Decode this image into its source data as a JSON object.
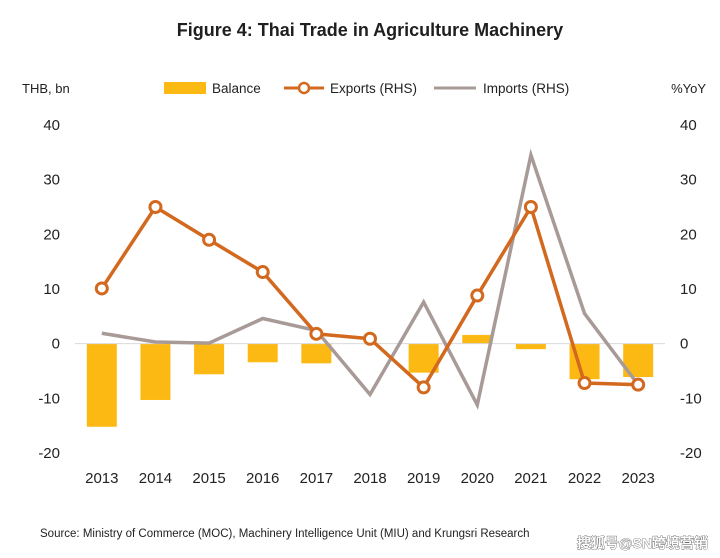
{
  "chart_data": {
    "type": "bar+line",
    "title": "Figure 4: Thai Trade in Agriculture Machinery",
    "left_axis_label": "THB, bn",
    "right_axis_label": "%YoY",
    "ylim_left": [
      -20,
      40
    ],
    "ylim_right": [
      -20,
      40
    ],
    "yticks": [
      40,
      30,
      20,
      10,
      0,
      -10,
      -20
    ],
    "categories": [
      "2013",
      "2014",
      "2015",
      "2016",
      "2017",
      "2018",
      "2019",
      "2020",
      "2021",
      "2022",
      "2023"
    ],
    "series": [
      {
        "name": "Balance",
        "type": "bar",
        "axis": "left",
        "color": "#FDB913",
        "values": [
          -15.2,
          -10.3,
          -5.6,
          -3.4,
          -3.6,
          0,
          -5.3,
          1.6,
          -1.0,
          -6.5,
          -6.1
        ]
      },
      {
        "name": "Exports (RHS)",
        "type": "line",
        "axis": "right",
        "color": "#D2691E",
        "marker": "circle",
        "values": [
          10.1,
          25.0,
          19.0,
          13.1,
          1.8,
          0.9,
          -8.0,
          8.8,
          25.0,
          -7.2,
          -7.5
        ]
      },
      {
        "name": "Imports (RHS)",
        "type": "line",
        "axis": "right",
        "color": "#A89A96",
        "values": [
          1.9,
          0.3,
          0.1,
          4.6,
          2.4,
          -9.3,
          7.6,
          -11.2,
          34.5,
          5.5,
          -7.5
        ]
      }
    ],
    "legend_position": "top",
    "grid": false,
    "source": "Source: Ministry of Commerce (MOC), Machinery Intelligence Unit (MIU) and Krungsri Research",
    "watermark": "搜狐号@SN跨境营销"
  }
}
